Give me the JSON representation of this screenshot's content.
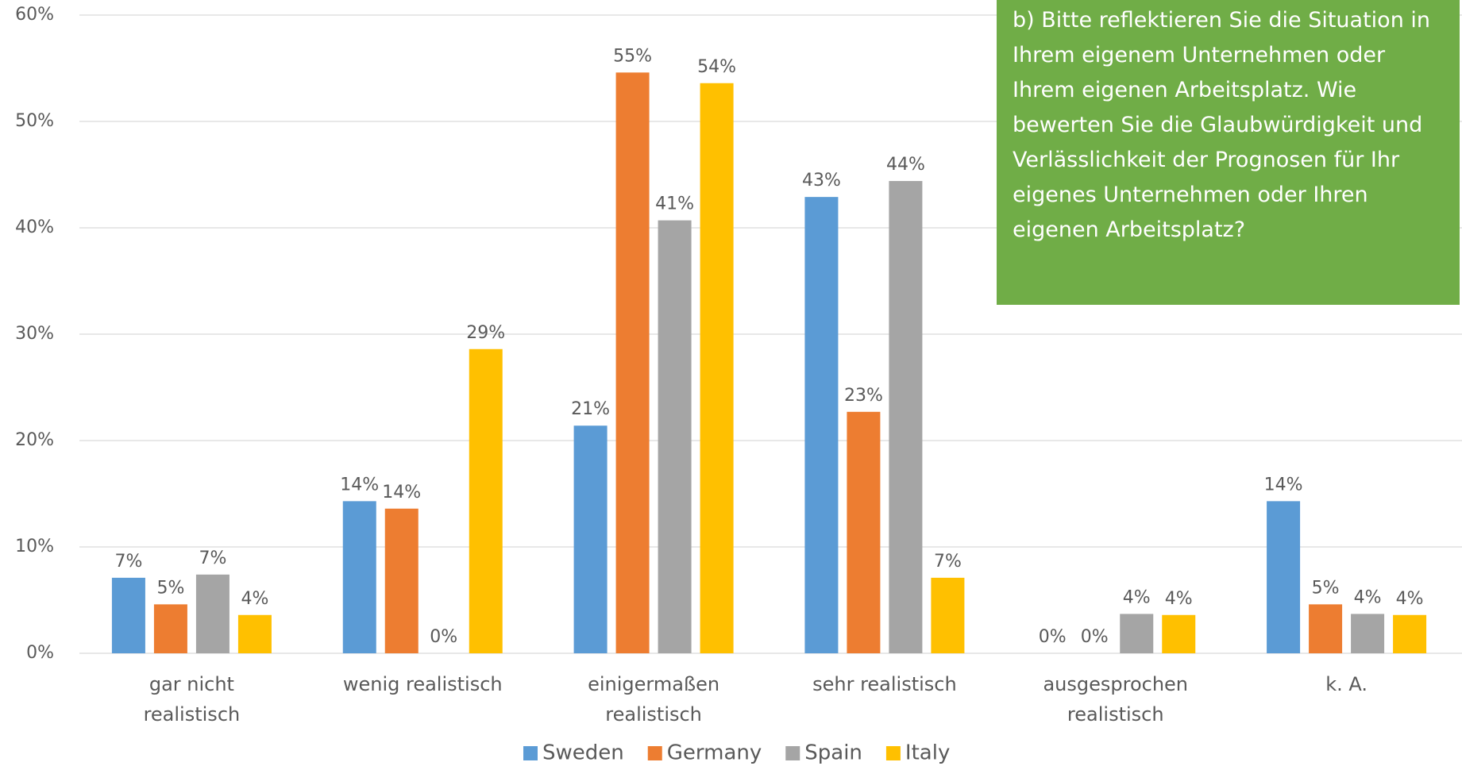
{
  "chart_data": {
    "type": "bar",
    "annotation": "b) Bitte reflektieren Sie die Situation in Ihrem eigenem Unternehmen oder Ihrem eigenen Arbeitsplatz. Wie bewerten Sie die Glaubwürdigkeit und Verlässlichkeit der Prognosen für Ihr eigenes Unternehmen oder Ihren eigenen Arbeitsplatz?",
    "categories": [
      "gar nicht realistisch",
      "wenig realistisch",
      "einigermaßen realistisch",
      "sehr realistisch",
      "ausgesprochen realistisch",
      "k. A."
    ],
    "series": [
      {
        "name": "Sweden",
        "color": "#5b9bd5",
        "values": [
          7.1,
          14.3,
          21.4,
          42.9,
          0,
          14.3
        ],
        "value_labels": [
          "7%",
          "14%",
          "21%",
          "43%",
          "0%",
          "14%"
        ]
      },
      {
        "name": "Germany",
        "color": "#ed7d31",
        "values": [
          4.6,
          13.6,
          54.6,
          22.7,
          0,
          4.6
        ],
        "value_labels": [
          "5%",
          "14%",
          "55%",
          "23%",
          "0%",
          "5%"
        ]
      },
      {
        "name": "Spain",
        "color": "#a5a5a5",
        "values": [
          7.4,
          0,
          40.7,
          44.4,
          3.7,
          3.7
        ],
        "value_labels": [
          "7%",
          "0%",
          "41%",
          "44%",
          "4%",
          "4%"
        ]
      },
      {
        "name": "Italy",
        "color": "#ffc000",
        "values": [
          3.6,
          28.6,
          53.6,
          7.1,
          3.6,
          3.6
        ],
        "value_labels": [
          "4%",
          "29%",
          "54%",
          "7%",
          "4%",
          "4%"
        ]
      }
    ],
    "ylim": [
      0,
      60
    ],
    "yticks": [
      {
        "value": 0,
        "label": "0%"
      },
      {
        "value": 10,
        "label": "10%"
      },
      {
        "value": 20,
        "label": "20%"
      },
      {
        "value": 30,
        "label": "30%"
      },
      {
        "value": 40,
        "label": "40%"
      },
      {
        "value": 50,
        "label": "50%"
      },
      {
        "value": 60,
        "label": "60%"
      }
    ],
    "grid": true,
    "legend": "bottom"
  }
}
